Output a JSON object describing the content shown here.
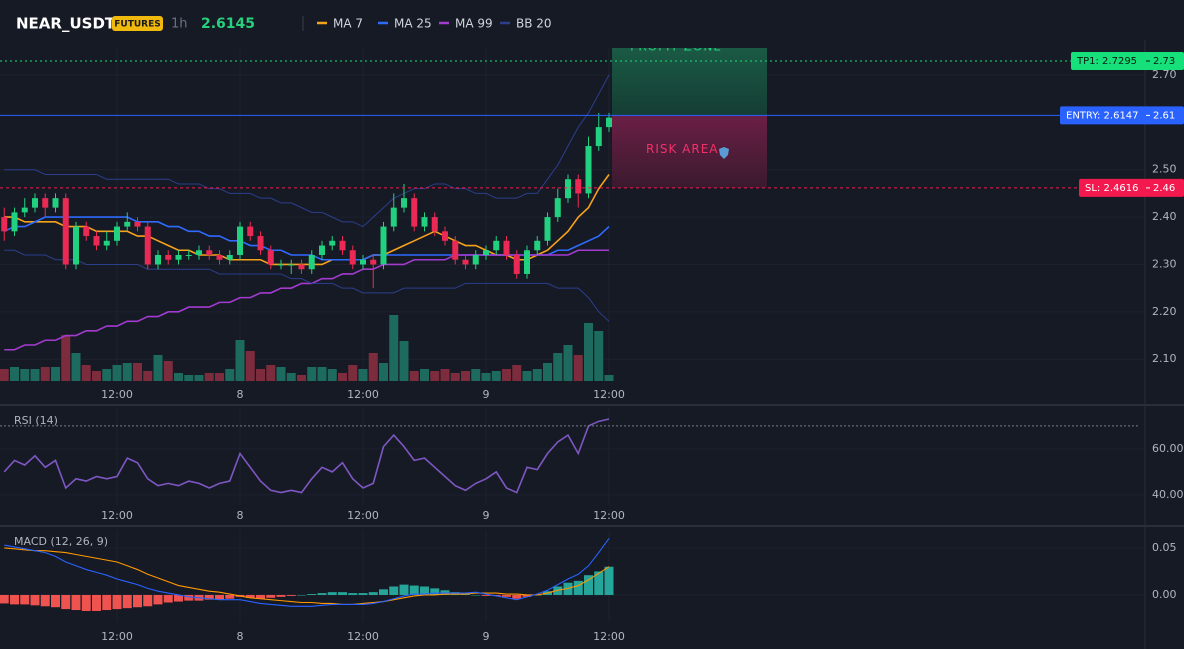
{
  "header": {
    "symbol": "NEAR_USDT",
    "badge": "FUTURES",
    "interval": "1h",
    "price": 2.6145
  },
  "chart_data": [
    {
      "type": "candlestick",
      "candles": [
        [
          2.4,
          2.42,
          2.35,
          2.37
        ],
        [
          2.37,
          2.42,
          2.36,
          2.41
        ],
        [
          2.41,
          2.44,
          2.4,
          2.42
        ],
        [
          2.42,
          2.45,
          2.41,
          2.44
        ],
        [
          2.44,
          2.45,
          2.4,
          2.42
        ],
        [
          2.42,
          2.45,
          2.41,
          2.44
        ],
        [
          2.44,
          2.45,
          2.29,
          2.3
        ],
        [
          2.3,
          2.39,
          2.29,
          2.38
        ],
        [
          2.38,
          2.39,
          2.35,
          2.36
        ],
        [
          2.36,
          2.37,
          2.33,
          2.34
        ],
        [
          2.34,
          2.37,
          2.33,
          2.35
        ],
        [
          2.35,
          2.39,
          2.34,
          2.38
        ],
        [
          2.38,
          2.41,
          2.37,
          2.39
        ],
        [
          2.39,
          2.4,
          2.37,
          2.38
        ],
        [
          2.38,
          2.39,
          2.29,
          2.3
        ],
        [
          2.3,
          2.33,
          2.29,
          2.32
        ],
        [
          2.32,
          2.33,
          2.3,
          2.31
        ],
        [
          2.31,
          2.33,
          2.3,
          2.32
        ],
        [
          2.32,
          2.33,
          2.31,
          2.32
        ],
        [
          2.32,
          2.34,
          2.31,
          2.33
        ],
        [
          2.33,
          2.34,
          2.31,
          2.32
        ],
        [
          2.32,
          2.33,
          2.3,
          2.31
        ],
        [
          2.31,
          2.33,
          2.3,
          2.32
        ],
        [
          2.32,
          2.39,
          2.31,
          2.38
        ],
        [
          2.38,
          2.39,
          2.35,
          2.36
        ],
        [
          2.36,
          2.37,
          2.32,
          2.33
        ],
        [
          2.33,
          2.34,
          2.29,
          2.3
        ],
        [
          2.3,
          2.31,
          2.29,
          2.3
        ],
        [
          2.3,
          2.31,
          2.28,
          2.3
        ],
        [
          2.3,
          2.31,
          2.28,
          2.29
        ],
        [
          2.29,
          2.33,
          2.28,
          2.32
        ],
        [
          2.32,
          2.35,
          2.31,
          2.34
        ],
        [
          2.34,
          2.36,
          2.33,
          2.35
        ],
        [
          2.35,
          2.36,
          2.32,
          2.33
        ],
        [
          2.33,
          2.34,
          2.29,
          2.3
        ],
        [
          2.3,
          2.32,
          2.29,
          2.31
        ],
        [
          2.31,
          2.32,
          2.25,
          2.3
        ],
        [
          2.3,
          2.39,
          2.29,
          2.38
        ],
        [
          2.38,
          2.45,
          2.37,
          2.42
        ],
        [
          2.42,
          2.47,
          2.41,
          2.44
        ],
        [
          2.44,
          2.45,
          2.37,
          2.38
        ],
        [
          2.38,
          2.41,
          2.37,
          2.4
        ],
        [
          2.4,
          2.41,
          2.36,
          2.37
        ],
        [
          2.37,
          2.38,
          2.34,
          2.35
        ],
        [
          2.35,
          2.36,
          2.3,
          2.31
        ],
        [
          2.31,
          2.32,
          2.29,
          2.3
        ],
        [
          2.3,
          2.33,
          2.29,
          2.32
        ],
        [
          2.32,
          2.34,
          2.31,
          2.33
        ],
        [
          2.33,
          2.36,
          2.32,
          2.35
        ],
        [
          2.35,
          2.36,
          2.31,
          2.32
        ],
        [
          2.32,
          2.33,
          2.27,
          2.28
        ],
        [
          2.28,
          2.34,
          2.27,
          2.33
        ],
        [
          2.33,
          2.36,
          2.32,
          2.35
        ],
        [
          2.35,
          2.41,
          2.34,
          2.4
        ],
        [
          2.4,
          2.46,
          2.39,
          2.44
        ],
        [
          2.44,
          2.49,
          2.43,
          2.48
        ],
        [
          2.48,
          2.49,
          2.42,
          2.45
        ],
        [
          2.45,
          2.57,
          2.44,
          2.55
        ],
        [
          2.55,
          2.62,
          2.54,
          2.59
        ],
        [
          2.59,
          2.62,
          2.58,
          2.61
        ]
      ],
      "volume": [
        12,
        14,
        12,
        12,
        14,
        14,
        46,
        28,
        16,
        10,
        12,
        16,
        18,
        18,
        10,
        26,
        20,
        8,
        6,
        6,
        8,
        8,
        12,
        41,
        30,
        12,
        16,
        14,
        8,
        6,
        14,
        14,
        12,
        8,
        16,
        12,
        28,
        18,
        66,
        40,
        10,
        12,
        10,
        12,
        8,
        10,
        12,
        8,
        10,
        12,
        16,
        10,
        12,
        18,
        28,
        36,
        26,
        58,
        50,
        6
      ],
      "up_color": "#22d17f",
      "down_color": "#ea2a55",
      "up_volume_color": "#1d6b5f",
      "down_volume_color": "#7d2c3d",
      "series": [
        {
          "name": "MA 7",
          "color": "#f7a21b",
          "values": [
            2.4,
            2.4,
            2.39,
            2.39,
            2.39,
            2.39,
            2.38,
            2.38,
            2.38,
            2.37,
            2.37,
            2.37,
            2.37,
            2.36,
            2.36,
            2.35,
            2.34,
            2.33,
            2.33,
            2.32,
            2.32,
            2.32,
            2.31,
            2.31,
            2.31,
            2.31,
            2.3,
            2.3,
            2.3,
            2.3,
            2.3,
            2.3,
            2.31,
            2.31,
            2.31,
            2.31,
            2.32,
            2.32,
            2.33,
            2.34,
            2.35,
            2.36,
            2.37,
            2.36,
            2.35,
            2.34,
            2.34,
            2.33,
            2.32,
            2.32,
            2.31,
            2.31,
            2.32,
            2.33,
            2.35,
            2.37,
            2.4,
            2.42,
            2.46,
            2.49
          ]
        },
        {
          "name": "MA 25",
          "color": "#2f6bff",
          "values": [
            2.37,
            2.38,
            2.38,
            2.39,
            2.4,
            2.4,
            2.4,
            2.4,
            2.4,
            2.4,
            2.4,
            2.4,
            2.4,
            2.39,
            2.39,
            2.39,
            2.38,
            2.38,
            2.37,
            2.37,
            2.36,
            2.36,
            2.35,
            2.35,
            2.34,
            2.34,
            2.33,
            2.33,
            2.32,
            2.32,
            2.32,
            2.31,
            2.31,
            2.31,
            2.31,
            2.31,
            2.32,
            2.32,
            2.32,
            2.32,
            2.32,
            2.32,
            2.32,
            2.32,
            2.32,
            2.32,
            2.32,
            2.32,
            2.32,
            2.32,
            2.32,
            2.32,
            2.32,
            2.32,
            2.33,
            2.33,
            2.34,
            2.35,
            2.36,
            2.38
          ]
        },
        {
          "name": "MA 99",
          "color": "#a33bd1",
          "values": [
            2.12,
            2.12,
            2.13,
            2.13,
            2.14,
            2.14,
            2.15,
            2.15,
            2.16,
            2.16,
            2.17,
            2.17,
            2.18,
            2.18,
            2.19,
            2.19,
            2.2,
            2.2,
            2.21,
            2.21,
            2.21,
            2.22,
            2.22,
            2.23,
            2.23,
            2.24,
            2.24,
            2.25,
            2.25,
            2.26,
            2.26,
            2.27,
            2.27,
            2.28,
            2.28,
            2.29,
            2.29,
            2.3,
            2.3,
            2.3,
            2.31,
            2.31,
            2.31,
            2.31,
            2.32,
            2.32,
            2.32,
            2.32,
            2.32,
            2.32,
            2.32,
            2.32,
            2.32,
            2.32,
            2.32,
            2.32,
            2.33,
            2.33,
            2.33,
            2.33
          ]
        },
        {
          "name": "BB 20",
          "color": "#2b3f8c",
          "upper": [
            2.5,
            2.5,
            2.5,
            2.5,
            2.49,
            2.49,
            2.49,
            2.49,
            2.49,
            2.49,
            2.48,
            2.48,
            2.48,
            2.48,
            2.48,
            2.48,
            2.48,
            2.47,
            2.47,
            2.47,
            2.46,
            2.46,
            2.45,
            2.45,
            2.45,
            2.44,
            2.44,
            2.43,
            2.43,
            2.42,
            2.41,
            2.41,
            2.4,
            2.39,
            2.39,
            2.38,
            2.4,
            2.42,
            2.44,
            2.45,
            2.46,
            2.46,
            2.47,
            2.47,
            2.46,
            2.46,
            2.45,
            2.45,
            2.44,
            2.44,
            2.44,
            2.45,
            2.45,
            2.48,
            2.51,
            2.55,
            2.59,
            2.62,
            2.66,
            2.7
          ],
          "lower": [
            2.33,
            2.33,
            2.32,
            2.32,
            2.32,
            2.31,
            2.31,
            2.31,
            2.3,
            2.3,
            2.3,
            2.3,
            2.3,
            2.3,
            2.29,
            2.29,
            2.29,
            2.29,
            2.29,
            2.29,
            2.29,
            2.28,
            2.28,
            2.28,
            2.28,
            2.28,
            2.28,
            2.28,
            2.27,
            2.27,
            2.26,
            2.26,
            2.26,
            2.25,
            2.25,
            2.24,
            2.24,
            2.24,
            2.24,
            2.25,
            2.25,
            2.25,
            2.25,
            2.25,
            2.25,
            2.26,
            2.26,
            2.26,
            2.26,
            2.26,
            2.26,
            2.26,
            2.26,
            2.26,
            2.25,
            2.25,
            2.25,
            2.23,
            2.2,
            2.18
          ]
        }
      ],
      "ylim": [
        2.054,
        2.757
      ],
      "yticks": [
        {
          "value": 2.1,
          "label": "2.10"
        },
        {
          "value": 2.2,
          "label": "2.20"
        },
        {
          "value": 2.3,
          "label": "2.30"
        },
        {
          "value": 2.4,
          "label": "2.40"
        },
        {
          "value": 2.5,
          "label": "2.50"
        },
        {
          "value": 2.7,
          "label": "2.70"
        }
      ],
      "xticks": [
        {
          "value": 11,
          "label": "12:00"
        },
        {
          "value": 23,
          "label": "8"
        },
        {
          "value": 35,
          "label": "12:00"
        },
        {
          "value": 47,
          "label": "9"
        },
        {
          "value": 59,
          "label": "12:00"
        }
      ],
      "levels": [
        {
          "label": "TP1: 2.7295",
          "price_label": "2.73",
          "value": 2.7295,
          "color": "#16e07a"
        },
        {
          "label": "ENTRY: 2.6147",
          "price_label": "2.61",
          "value": 2.6147,
          "color": "#2962ff"
        },
        {
          "label": "SL: 2.4616",
          "price_label": "2.46",
          "value": 2.4616,
          "color": "#f2194f"
        }
      ],
      "zones": {
        "profit": "PROFIT ZONE",
        "risk": "RISK AREA"
      }
    },
    {
      "type": "line",
      "title": "RSI (14)",
      "color": "#7e57c2",
      "values": [
        50,
        55,
        53,
        57,
        52,
        55,
        43,
        47,
        46,
        48,
        47,
        48,
        56,
        54,
        47,
        44,
        45,
        44,
        46,
        45,
        43,
        45,
        46,
        58,
        52,
        46,
        42,
        41,
        42,
        41,
        47,
        52,
        50,
        54,
        47,
        43,
        45,
        61,
        66,
        61,
        55,
        56,
        52,
        48,
        44,
        42,
        45,
        47,
        50,
        43,
        41,
        52,
        51,
        58,
        63,
        66,
        58,
        70,
        72,
        73
      ],
      "ylim": [
        35.6,
        77.8
      ],
      "yticks": [
        {
          "value": 60,
          "label": "60.00"
        },
        {
          "value": 40,
          "label": "40.00"
        }
      ],
      "reference_lines": [
        70
      ],
      "xticks": [
        {
          "value": 11,
          "label": "12:00"
        },
        {
          "value": 23,
          "label": "8"
        },
        {
          "value": 35,
          "label": "12:00"
        },
        {
          "value": 47,
          "label": "9"
        },
        {
          "value": 59,
          "label": "12:00"
        }
      ]
    },
    {
      "type": "macd",
      "title": "MACD (12, 26, 9)",
      "histogram": [
        -0.009,
        -0.01,
        -0.01,
        -0.011,
        -0.012,
        -0.013,
        -0.015,
        -0.016,
        -0.017,
        -0.017,
        -0.016,
        -0.015,
        -0.014,
        -0.013,
        -0.012,
        -0.01,
        -0.008,
        -0.007,
        -0.006,
        -0.006,
        -0.005,
        -0.005,
        -0.004,
        -0.002,
        -0.003,
        -0.004,
        -0.003,
        -0.002,
        -0.001,
        0,
        0.001,
        0.002,
        0.003,
        0.003,
        0.002,
        0.002,
        0.003,
        0.006,
        0.009,
        0.011,
        0.01,
        0.009,
        0.007,
        0.005,
        0.003,
        0.001,
        0,
        -0.001,
        -0.001,
        -0.002,
        -0.004,
        -0.002,
        0,
        0.004,
        0.009,
        0.013,
        0.015,
        0.021,
        0.025,
        0.03
      ],
      "macd": [
        0.053,
        0.051,
        0.049,
        0.047,
        0.045,
        0.041,
        0.035,
        0.031,
        0.027,
        0.024,
        0.021,
        0.017,
        0.014,
        0.011,
        0.007,
        0.004,
        0.002,
        0,
        -0.002,
        -0.003,
        -0.004,
        -0.005,
        -0.005,
        -0.005,
        -0.007,
        -0.009,
        -0.01,
        -0.011,
        -0.012,
        -0.012,
        -0.012,
        -0.011,
        -0.01,
        -0.01,
        -0.01,
        -0.01,
        -0.009,
        -0.007,
        -0.004,
        -0.001,
        0.001,
        0.001,
        0.002,
        0.002,
        0.002,
        0.002,
        0.003,
        0.001,
        -0.001,
        -0.003,
        -0.005,
        -0.002,
        0.001,
        0.005,
        0.011,
        0.017,
        0.022,
        0.031,
        0.045,
        0.06
      ],
      "signal": [
        0.05,
        0.049,
        0.048,
        0.047,
        0.047,
        0.046,
        0.045,
        0.043,
        0.041,
        0.039,
        0.037,
        0.035,
        0.031,
        0.027,
        0.022,
        0.018,
        0.014,
        0.01,
        0.008,
        0.006,
        0.004,
        0.003,
        0.001,
        -0.001,
        -0.003,
        -0.004,
        -0.005,
        -0.006,
        -0.007,
        -0.008,
        -0.008,
        -0.009,
        -0.009,
        -0.01,
        -0.01,
        -0.009,
        -0.008,
        -0.007,
        -0.005,
        -0.003,
        -0.001,
        0,
        0,
        0.001,
        0.001,
        0.001,
        0.002,
        0.002,
        0.002,
        0.001,
        0.001,
        0,
        0,
        0.002,
        0.005,
        0.007,
        0.01,
        0.016,
        0.023,
        0.03
      ],
      "macd_color": "#2962ff",
      "signal_color": "#ff9800",
      "pos_color": "#26a69a",
      "neg_color": "#ef5350",
      "ylim": [
        -0.0287,
        0.069
      ],
      "yticks": [
        {
          "value": 0.05,
          "label": "0.05"
        },
        {
          "value": 0,
          "label": "0.00"
        }
      ],
      "xticks": [
        {
          "value": 11,
          "label": "12:00"
        },
        {
          "value": 23,
          "label": "8"
        },
        {
          "value": 35,
          "label": "12:00"
        },
        {
          "value": 47,
          "label": "9"
        },
        {
          "value": 59,
          "label": "12:00"
        }
      ]
    }
  ]
}
